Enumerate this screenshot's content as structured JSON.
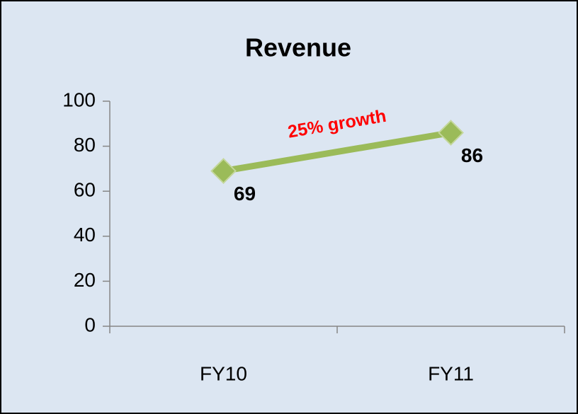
{
  "chart_data": {
    "type": "line",
    "title": "Revenue",
    "categories": [
      "FY10",
      "FY11"
    ],
    "series": [
      {
        "name": "Revenue",
        "color": "#9bbb59",
        "values": [
          69,
          86
        ]
      }
    ],
    "ylim": [
      0,
      100
    ],
    "yticks": [
      0,
      20,
      40,
      60,
      80,
      100
    ],
    "annotation": "25% growth",
    "annotation_color": "#ff0000",
    "background": "#dce6f2",
    "grid": false
  }
}
